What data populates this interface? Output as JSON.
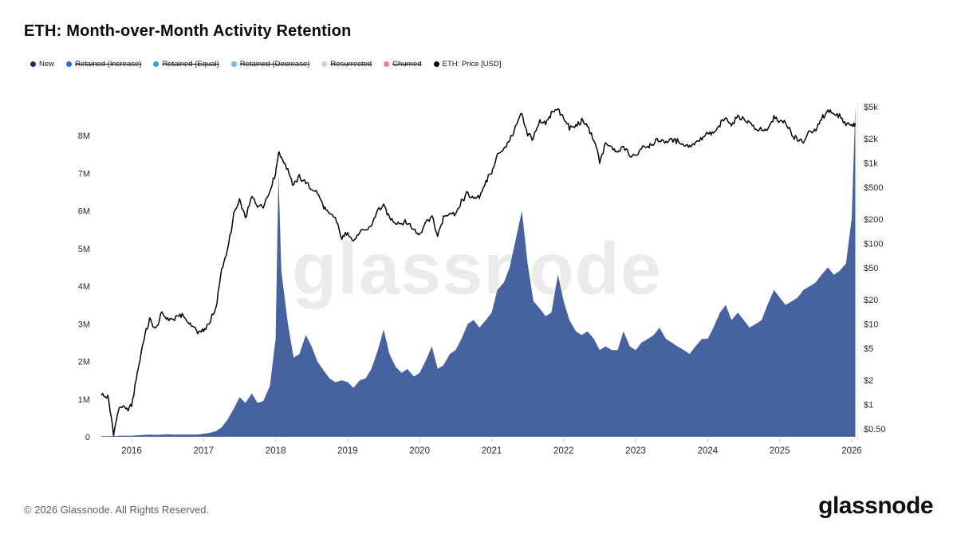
{
  "header": {
    "title": "ETH: Month-over-Month Activity Retention"
  },
  "watermark": "glassnode",
  "footer": {
    "copyright": "© 2026 Glassnode. All Rights Reserved.",
    "logo": "glassnode"
  },
  "legend": {
    "items": [
      {
        "label": "New",
        "color": "#1b2f66",
        "struck": false
      },
      {
        "label": "Retained (Increase)",
        "color": "#2f6bdb",
        "struck": true
      },
      {
        "label": "Retained (Equal)",
        "color": "#3d9ae8",
        "struck": true
      },
      {
        "label": "Retained (Decrease)",
        "color": "#6fb7ea",
        "struck": true
      },
      {
        "label": "Resurrected",
        "color": "#b5d9f5",
        "struck": true
      },
      {
        "label": "Churned",
        "color": "#f07d96",
        "struck": true
      },
      {
        "label": "ETH: Price [USD]",
        "color": "#000000",
        "struck": false
      }
    ]
  },
  "chart_data": {
    "type": "area+line",
    "title": "ETH: Month-over-Month Activity Retention",
    "x_axis": {
      "ticks": [
        "2016",
        "2017",
        "2018",
        "2019",
        "2020",
        "2021",
        "2022",
        "2023",
        "2024",
        "2025",
        "2026"
      ]
    },
    "left_axis": {
      "tick_labels": [
        "0",
        "1M",
        "2M",
        "3M",
        "4M",
        "5M",
        "6M",
        "7M",
        "8M"
      ],
      "tick_values_millions": [
        0,
        1,
        2,
        3,
        4,
        5,
        6,
        7,
        8
      ],
      "range_millions": [
        0,
        8.9
      ],
      "grid": false
    },
    "right_axis": {
      "scale": "log",
      "tick_labels": [
        "$0.50",
        "$1",
        "$2",
        "$5",
        "$10",
        "$20",
        "$50",
        "$100",
        "$200",
        "$500",
        "$1k",
        "$2k",
        "$5k"
      ],
      "tick_values_usd": [
        0.5,
        1,
        2,
        5,
        10,
        20,
        50,
        100,
        200,
        500,
        1000,
        2000,
        5000
      ],
      "range_usd": [
        0.4,
        6000
      ]
    },
    "x": [
      2015.58,
      2015.67,
      2015.75,
      2015.83,
      2015.92,
      2016.0,
      2016.08,
      2016.17,
      2016.25,
      2016.33,
      2016.42,
      2016.5,
      2016.58,
      2016.67,
      2016.75,
      2016.83,
      2016.92,
      2017.0,
      2017.08,
      2017.17,
      2017.25,
      2017.33,
      2017.42,
      2017.5,
      2017.58,
      2017.67,
      2017.75,
      2017.83,
      2017.92,
      2018.0,
      2018.04,
      2018.08,
      2018.17,
      2018.25,
      2018.33,
      2018.42,
      2018.5,
      2018.58,
      2018.67,
      2018.75,
      2018.83,
      2018.92,
      2019.0,
      2019.08,
      2019.17,
      2019.25,
      2019.33,
      2019.42,
      2019.5,
      2019.58,
      2019.67,
      2019.75,
      2019.83,
      2019.92,
      2020.0,
      2020.08,
      2020.17,
      2020.25,
      2020.33,
      2020.42,
      2020.5,
      2020.58,
      2020.67,
      2020.75,
      2020.83,
      2020.92,
      2021.0,
      2021.08,
      2021.17,
      2021.25,
      2021.33,
      2021.42,
      2021.5,
      2021.58,
      2021.67,
      2021.75,
      2021.83,
      2021.92,
      2022.0,
      2022.08,
      2022.17,
      2022.25,
      2022.33,
      2022.42,
      2022.5,
      2022.58,
      2022.67,
      2022.75,
      2022.83,
      2022.92,
      2023.0,
      2023.08,
      2023.17,
      2023.25,
      2023.33,
      2023.42,
      2023.5,
      2023.58,
      2023.67,
      2023.75,
      2023.83,
      2023.92,
      2024.0,
      2024.08,
      2024.17,
      2024.25,
      2024.33,
      2024.42,
      2024.5,
      2024.58,
      2024.67,
      2024.75,
      2024.83,
      2024.92,
      2025.0,
      2025.08,
      2025.17,
      2025.25,
      2025.33,
      2025.42,
      2025.5,
      2025.58,
      2025.67,
      2025.75,
      2025.83,
      2025.92,
      2026.0,
      2026.05
    ],
    "series": [
      {
        "name": "New",
        "type": "area",
        "axis": "left",
        "color": "#47639f",
        "values_millions": [
          0.02,
          0.02,
          0.02,
          0.03,
          0.03,
          0.03,
          0.04,
          0.05,
          0.06,
          0.05,
          0.06,
          0.07,
          0.06,
          0.06,
          0.06,
          0.06,
          0.06,
          0.08,
          0.1,
          0.15,
          0.25,
          0.45,
          0.75,
          1.05,
          0.9,
          1.15,
          0.9,
          0.95,
          1.35,
          2.6,
          7.0,
          4.4,
          3.0,
          2.1,
          2.2,
          2.7,
          2.4,
          2.0,
          1.75,
          1.55,
          1.45,
          1.5,
          1.45,
          1.3,
          1.5,
          1.55,
          1.8,
          2.3,
          2.85,
          2.2,
          1.85,
          1.7,
          1.8,
          1.6,
          1.7,
          2.0,
          2.4,
          1.8,
          1.9,
          2.2,
          2.3,
          2.6,
          3.0,
          3.1,
          2.9,
          3.1,
          3.3,
          3.9,
          4.1,
          4.5,
          5.2,
          6.0,
          4.6,
          3.6,
          3.4,
          3.2,
          3.3,
          4.3,
          3.6,
          3.1,
          2.8,
          2.7,
          2.8,
          2.6,
          2.3,
          2.4,
          2.3,
          2.3,
          2.8,
          2.4,
          2.3,
          2.5,
          2.6,
          2.7,
          2.9,
          2.6,
          2.5,
          2.4,
          2.3,
          2.2,
          2.4,
          2.6,
          2.6,
          2.9,
          3.3,
          3.5,
          3.1,
          3.3,
          3.1,
          2.9,
          3.0,
          3.1,
          3.5,
          3.9,
          3.7,
          3.5,
          3.6,
          3.7,
          3.9,
          4.0,
          4.1,
          4.3,
          4.5,
          4.3,
          4.4,
          4.6,
          5.8,
          8.8
        ]
      },
      {
        "name": "ETH: Price [USD]",
        "type": "line",
        "axis": "right",
        "color": "#000000",
        "values_usd": [
          1.3,
          1.25,
          0.45,
          0.95,
          0.88,
          0.95,
          2.5,
          6.5,
          11.5,
          8.5,
          13.5,
          11.5,
          11.2,
          13.2,
          11.5,
          9.8,
          7.9,
          8.2,
          10.7,
          15,
          50,
          80,
          230,
          340,
          210,
          385,
          290,
          305,
          440,
          760,
          1380,
          1150,
          850,
          520,
          680,
          580,
          470,
          430,
          280,
          230,
          205,
          115,
          140,
          107,
          137,
          142,
          170,
          260,
          300,
          215,
          185,
          180,
          182,
          151,
          131,
          183,
          225,
          120,
          210,
          235,
          230,
          330,
          430,
          355,
          390,
          600,
          740,
          1300,
          1500,
          1900,
          2800,
          4150,
          2250,
          2050,
          3200,
          3000,
          4250,
          4650,
          3700,
          2700,
          2900,
          3350,
          2850,
          1950,
          1080,
          1700,
          1570,
          1330,
          1580,
          1220,
          1200,
          1590,
          1650,
          1800,
          1900,
          1830,
          1930,
          1870,
          1650,
          1680,
          1800,
          2050,
          2290,
          2310,
          3000,
          3600,
          3050,
          3800,
          3400,
          3250,
          2550,
          2650,
          2520,
          3650,
          3350,
          3150,
          2250,
          1900,
          1820,
          2550,
          2450,
          3600,
          4500,
          4100,
          3900,
          3050,
          2950,
          3100
        ]
      }
    ]
  }
}
